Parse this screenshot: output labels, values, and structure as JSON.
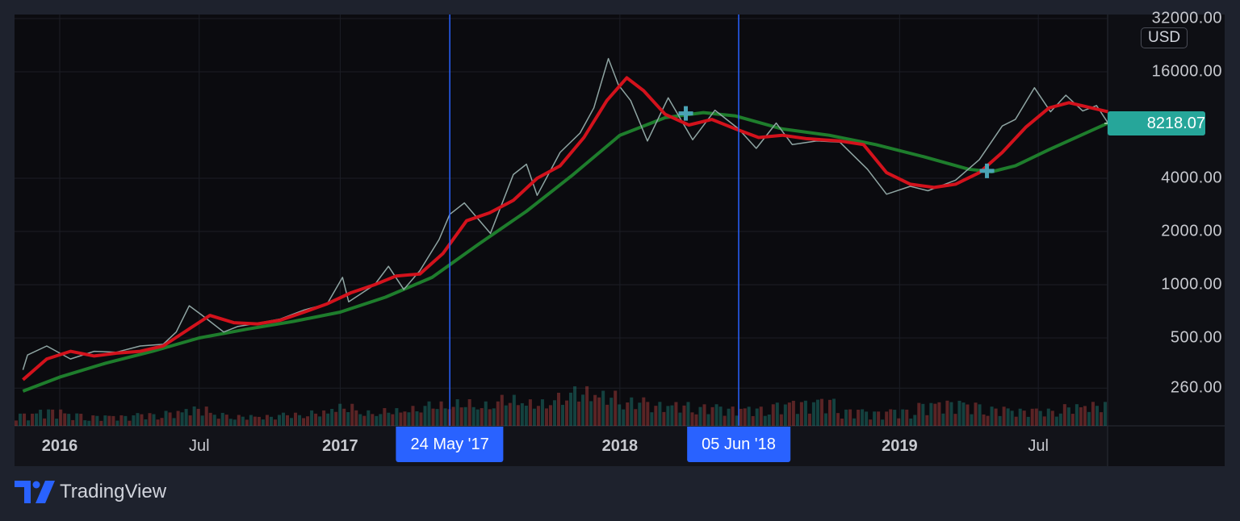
{
  "chart_data": {
    "type": "line",
    "title": "",
    "scale": "log",
    "currency": "USD",
    "last_price": "8218.07",
    "y_ticks": [
      "32000.00",
      "16000.00",
      "4000.00",
      "2000.00",
      "1000.00",
      "500.00",
      "260.00"
    ],
    "y_tick_values": [
      32000,
      16000,
      4000,
      2000,
      1000,
      500,
      260
    ],
    "x_ticks": [
      {
        "label": "2016",
        "date": "2016-01-01",
        "year": true
      },
      {
        "label": "Jul",
        "date": "2016-07-01",
        "year": false
      },
      {
        "label": "2017",
        "date": "2017-01-01",
        "year": true
      },
      {
        "label": "2018",
        "date": "2018-01-01",
        "year": true
      },
      {
        "label": "2019",
        "date": "2019-01-01",
        "year": true
      },
      {
        "label": "Jul",
        "date": "2019-07-01",
        "year": false
      }
    ],
    "xlim": [
      "2015-11-14",
      "2019-09-30"
    ],
    "ylim": [
      200,
      32000
    ],
    "grid": true,
    "colors": {
      "price": "#8fa5a3",
      "ma_fast": "#d3121c",
      "ma_slow": "#1e7d2c",
      "crosshair": "#2962ff",
      "last_price": "#26a69a",
      "cross_marker": "#4aa3b5"
    },
    "crosshair_lines": [
      {
        "label": "24 May '17",
        "date": "2017-05-24"
      },
      {
        "label": "05 Jun '18",
        "date": "2018-06-05"
      }
    ],
    "cross_markers": [
      {
        "date": "2018-03-28",
        "value": 9300
      },
      {
        "date": "2019-04-25",
        "value": 4400
      }
    ],
    "series": [
      {
        "id": "price",
        "points": [
          [
            "2015-11-14",
            330
          ],
          [
            "2015-11-20",
            400
          ],
          [
            "2015-12-15",
            450
          ],
          [
            "2016-01-15",
            380
          ],
          [
            "2016-02-15",
            420
          ],
          [
            "2016-03-15",
            415
          ],
          [
            "2016-04-15",
            450
          ],
          [
            "2016-05-15",
            460
          ],
          [
            "2016-06-01",
            540
          ],
          [
            "2016-06-18",
            760
          ],
          [
            "2016-07-05",
            670
          ],
          [
            "2016-08-02",
            540
          ],
          [
            "2016-08-20",
            580
          ],
          [
            "2016-09-15",
            605
          ],
          [
            "2016-10-15",
            640
          ],
          [
            "2016-11-15",
            720
          ],
          [
            "2016-12-15",
            780
          ],
          [
            "2017-01-04",
            1100
          ],
          [
            "2017-01-12",
            800
          ],
          [
            "2017-02-15",
            1000
          ],
          [
            "2017-03-05",
            1270
          ],
          [
            "2017-03-25",
            940
          ],
          [
            "2017-04-15",
            1200
          ],
          [
            "2017-05-10",
            1800
          ],
          [
            "2017-05-24",
            2500
          ],
          [
            "2017-06-12",
            2900
          ],
          [
            "2017-07-16",
            1950
          ],
          [
            "2017-08-15",
            4200
          ],
          [
            "2017-09-01",
            4800
          ],
          [
            "2017-09-15",
            3200
          ],
          [
            "2017-10-15",
            5600
          ],
          [
            "2017-11-10",
            7200
          ],
          [
            "2017-11-28",
            10000
          ],
          [
            "2017-12-17",
            19000
          ],
          [
            "2017-12-30",
            13500
          ],
          [
            "2018-01-15",
            11000
          ],
          [
            "2018-02-06",
            6500
          ],
          [
            "2018-03-05",
            11400
          ],
          [
            "2018-04-06",
            6600
          ],
          [
            "2018-05-05",
            9700
          ],
          [
            "2018-06-05",
            7600
          ],
          [
            "2018-06-28",
            5900
          ],
          [
            "2018-07-24",
            8200
          ],
          [
            "2018-08-14",
            6200
          ],
          [
            "2018-09-15",
            6500
          ],
          [
            "2018-10-15",
            6400
          ],
          [
            "2018-11-20",
            4500
          ],
          [
            "2018-12-15",
            3250
          ],
          [
            "2019-01-15",
            3600
          ],
          [
            "2019-02-07",
            3400
          ],
          [
            "2019-03-15",
            3900
          ],
          [
            "2019-04-15",
            5100
          ],
          [
            "2019-05-15",
            7900
          ],
          [
            "2019-06-01",
            8600
          ],
          [
            "2019-06-26",
            13000
          ],
          [
            "2019-07-17",
            9500
          ],
          [
            "2019-08-06",
            11800
          ],
          [
            "2019-08-28",
            9600
          ],
          [
            "2019-09-15",
            10300
          ],
          [
            "2019-09-30",
            8218
          ]
        ]
      },
      {
        "id": "ma_fast",
        "points": [
          [
            "2015-11-14",
            290
          ],
          [
            "2015-12-15",
            380
          ],
          [
            "2016-01-15",
            420
          ],
          [
            "2016-02-15",
            395
          ],
          [
            "2016-03-15",
            410
          ],
          [
            "2016-04-15",
            420
          ],
          [
            "2016-05-15",
            450
          ],
          [
            "2016-06-20",
            570
          ],
          [
            "2016-07-15",
            670
          ],
          [
            "2016-08-15",
            610
          ],
          [
            "2016-09-15",
            600
          ],
          [
            "2016-10-15",
            630
          ],
          [
            "2016-11-15",
            700
          ],
          [
            "2016-12-15",
            780
          ],
          [
            "2017-01-15",
            900
          ],
          [
            "2017-02-15",
            1000
          ],
          [
            "2017-03-15",
            1120
          ],
          [
            "2017-04-15",
            1150
          ],
          [
            "2017-05-15",
            1500
          ],
          [
            "2017-06-15",
            2300
          ],
          [
            "2017-07-15",
            2550
          ],
          [
            "2017-08-15",
            3000
          ],
          [
            "2017-09-15",
            4000
          ],
          [
            "2017-10-15",
            4700
          ],
          [
            "2017-11-15",
            6800
          ],
          [
            "2017-12-15",
            11000
          ],
          [
            "2018-01-10",
            14800
          ],
          [
            "2018-02-01",
            12500
          ],
          [
            "2018-03-01",
            9200
          ],
          [
            "2018-04-01",
            8000
          ],
          [
            "2018-05-01",
            8600
          ],
          [
            "2018-06-01",
            7600
          ],
          [
            "2018-07-01",
            6800
          ],
          [
            "2018-08-01",
            7000
          ],
          [
            "2018-09-01",
            6700
          ],
          [
            "2018-10-15",
            6500
          ],
          [
            "2018-11-15",
            6200
          ],
          [
            "2018-12-15",
            4300
          ],
          [
            "2019-01-15",
            3700
          ],
          [
            "2019-02-15",
            3550
          ],
          [
            "2019-03-15",
            3700
          ],
          [
            "2019-04-15",
            4300
          ],
          [
            "2019-05-15",
            5600
          ],
          [
            "2019-06-15",
            7800
          ],
          [
            "2019-07-15",
            10000
          ],
          [
            "2019-08-10",
            10700
          ],
          [
            "2019-09-30",
            9500
          ]
        ]
      },
      {
        "id": "ma_slow",
        "points": [
          [
            "2015-11-14",
            250
          ],
          [
            "2016-01-01",
            300
          ],
          [
            "2016-03-01",
            360
          ],
          [
            "2016-05-01",
            420
          ],
          [
            "2016-07-01",
            500
          ],
          [
            "2016-09-01",
            560
          ],
          [
            "2016-11-01",
            620
          ],
          [
            "2017-01-01",
            700
          ],
          [
            "2017-03-01",
            850
          ],
          [
            "2017-05-01",
            1100
          ],
          [
            "2017-07-01",
            1700
          ],
          [
            "2017-09-01",
            2600
          ],
          [
            "2017-11-01",
            4200
          ],
          [
            "2018-01-01",
            7000
          ],
          [
            "2018-03-01",
            8800
          ],
          [
            "2018-04-20",
            9400
          ],
          [
            "2018-06-01",
            9000
          ],
          [
            "2018-08-01",
            7600
          ],
          [
            "2018-10-01",
            7000
          ],
          [
            "2018-12-01",
            6200
          ],
          [
            "2019-02-01",
            5300
          ],
          [
            "2019-04-01",
            4500
          ],
          [
            "2019-05-01",
            4350
          ],
          [
            "2019-06-01",
            4700
          ],
          [
            "2019-07-15",
            5800
          ],
          [
            "2019-09-30",
            8200
          ]
        ]
      }
    ],
    "volume": [
      30,
      40,
      30,
      25,
      25,
      30,
      35,
      45,
      30,
      25,
      25,
      30,
      35,
      50,
      35,
      40,
      45,
      55,
      60,
      55,
      70,
      60,
      75,
      90,
      80,
      65,
      55,
      55,
      50,
      45,
      45,
      55,
      60,
      65,
      40,
      35,
      40,
      55,
      60,
      55,
      45,
      40,
      40,
      50,
      55
    ]
  },
  "branding": {
    "name": "TradingView"
  }
}
